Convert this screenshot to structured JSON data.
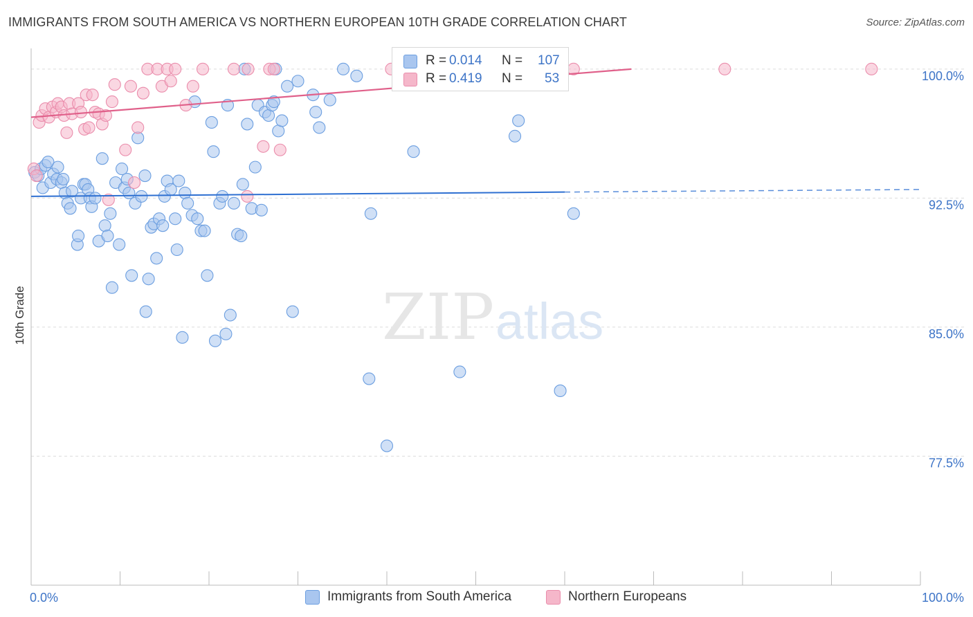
{
  "header": {
    "title": "IMMIGRANTS FROM SOUTH AMERICA VS NORTHERN EUROPEAN 10TH GRADE CORRELATION CHART",
    "source": "Source: ZipAtlas.com"
  },
  "watermark": {
    "zip": "ZIP",
    "atlas": "atlas"
  },
  "colors": {
    "blue_fill": "#a9c6ef",
    "blue_stroke": "#6b9ee0",
    "blue_line": "#2d6fd1",
    "pink_fill": "#f5b7ca",
    "pink_stroke": "#ea8cab",
    "pink_line": "#e0608a",
    "axis_text": "#3d74c7"
  },
  "legend": {
    "rows": [
      {
        "r_label": "R = ",
        "r_value": "0.014",
        "n_label": "N = ",
        "n_value": "107"
      },
      {
        "r_label": "R = ",
        "r_value": "0.419",
        "n_label": "N = ",
        "n_value": "53"
      }
    ]
  },
  "chart_data": {
    "type": "scatter",
    "title": "IMMIGRANTS FROM SOUTH AMERICA VS NORTHERN EUROPEAN 10TH GRADE CORRELATION CHART",
    "xlabel": "",
    "ylabel": "10th Grade",
    "xlim": [
      0,
      100
    ],
    "ylim": [
      70,
      101.2
    ],
    "x_tick_labels": [
      "0.0%",
      "100.0%"
    ],
    "y_ticks": [
      77.5,
      85.0,
      92.5,
      100.0
    ],
    "y_tick_labels": [
      "77.5%",
      "85.0%",
      "92.5%",
      "100.0%"
    ],
    "grid": "horizontal dashed",
    "legend_position": "top-center",
    "series": [
      {
        "name": "Immigrants from South America",
        "r": 0.014,
        "n": 107,
        "trend": {
          "x": [
            0,
            60,
            100
          ],
          "y": [
            92.6,
            92.85,
            93.0
          ],
          "solid_until": 60
        },
        "points": [
          [
            0.4,
            94.0
          ],
          [
            0.8,
            93.8
          ],
          [
            1.1,
            94.2
          ],
          [
            1.3,
            93.1
          ],
          [
            1.6,
            94.4
          ],
          [
            1.9,
            94.6
          ],
          [
            2.2,
            93.4
          ],
          [
            2.5,
            93.9
          ],
          [
            2.9,
            93.6
          ],
          [
            3.0,
            94.3
          ],
          [
            3.4,
            93.4
          ],
          [
            3.6,
            93.6
          ],
          [
            3.8,
            92.8
          ],
          [
            4.1,
            92.2
          ],
          [
            4.4,
            91.9
          ],
          [
            4.6,
            92.9
          ],
          [
            5.2,
            89.8
          ],
          [
            5.3,
            90.3
          ],
          [
            5.6,
            92.5
          ],
          [
            5.9,
            93.3
          ],
          [
            6.1,
            93.3
          ],
          [
            6.4,
            93.0
          ],
          [
            6.6,
            92.5
          ],
          [
            6.8,
            92.0
          ],
          [
            7.2,
            92.5
          ],
          [
            7.6,
            90.0
          ],
          [
            8.0,
            94.8
          ],
          [
            8.3,
            90.9
          ],
          [
            8.6,
            90.3
          ],
          [
            8.9,
            91.6
          ],
          [
            9.1,
            87.3
          ],
          [
            9.5,
            93.4
          ],
          [
            9.9,
            89.8
          ],
          [
            10.2,
            94.2
          ],
          [
            10.5,
            93.1
          ],
          [
            10.8,
            93.6
          ],
          [
            11.0,
            92.8
          ],
          [
            11.3,
            88.0
          ],
          [
            11.7,
            92.2
          ],
          [
            12.0,
            96.0
          ],
          [
            12.4,
            92.6
          ],
          [
            12.8,
            93.8
          ],
          [
            12.9,
            85.9
          ],
          [
            13.2,
            87.8
          ],
          [
            13.5,
            90.8
          ],
          [
            13.8,
            91.0
          ],
          [
            14.1,
            89.0
          ],
          [
            14.4,
            91.3
          ],
          [
            14.8,
            90.9
          ],
          [
            15.0,
            92.6
          ],
          [
            15.3,
            93.5
          ],
          [
            15.7,
            93.0
          ],
          [
            16.2,
            91.3
          ],
          [
            16.4,
            89.5
          ],
          [
            16.6,
            93.5
          ],
          [
            17.0,
            84.4
          ],
          [
            17.3,
            92.8
          ],
          [
            17.6,
            92.2
          ],
          [
            18.1,
            91.5
          ],
          [
            18.4,
            98.1
          ],
          [
            18.7,
            91.3
          ],
          [
            19.1,
            90.6
          ],
          [
            19.5,
            90.6
          ],
          [
            19.8,
            88.0
          ],
          [
            20.3,
            96.9
          ],
          [
            20.5,
            95.2
          ],
          [
            20.7,
            84.2
          ],
          [
            21.2,
            92.2
          ],
          [
            21.5,
            92.6
          ],
          [
            21.9,
            84.6
          ],
          [
            22.1,
            97.9
          ],
          [
            22.4,
            85.7
          ],
          [
            22.8,
            92.2
          ],
          [
            23.2,
            90.4
          ],
          [
            23.6,
            90.3
          ],
          [
            23.8,
            93.3
          ],
          [
            24.0,
            100.0
          ],
          [
            24.3,
            96.8
          ],
          [
            24.8,
            91.9
          ],
          [
            25.2,
            94.3
          ],
          [
            25.5,
            97.9
          ],
          [
            25.9,
            91.8
          ],
          [
            26.3,
            97.5
          ],
          [
            26.7,
            97.3
          ],
          [
            27.1,
            97.9
          ],
          [
            27.3,
            98.1
          ],
          [
            27.5,
            100.0
          ],
          [
            27.8,
            96.4
          ],
          [
            28.2,
            97.0
          ],
          [
            28.8,
            99.0
          ],
          [
            29.4,
            85.9
          ],
          [
            30.0,
            99.3
          ],
          [
            31.7,
            98.5
          ],
          [
            32.0,
            97.5
          ],
          [
            32.4,
            96.6
          ],
          [
            33.6,
            98.2
          ],
          [
            35.1,
            100.0
          ],
          [
            36.6,
            99.6
          ],
          [
            38.0,
            82.0
          ],
          [
            38.2,
            91.6
          ],
          [
            40.0,
            78.1
          ],
          [
            43.0,
            95.2
          ],
          [
            48.2,
            82.4
          ],
          [
            54.4,
            96.1
          ],
          [
            54.8,
            97.0
          ],
          [
            59.5,
            81.3
          ],
          [
            61.0,
            91.6
          ]
        ]
      },
      {
        "name": "Northern Europeans",
        "r": 0.419,
        "n": 53,
        "trend": {
          "x": [
            0,
            67.5
          ],
          "y": [
            97.2,
            100.0
          ]
        },
        "points": [
          [
            0.3,
            94.2
          ],
          [
            0.6,
            93.8
          ],
          [
            0.9,
            96.9
          ],
          [
            1.2,
            97.3
          ],
          [
            1.6,
            97.7
          ],
          [
            2.0,
            97.2
          ],
          [
            2.4,
            97.8
          ],
          [
            2.8,
            97.5
          ],
          [
            3.0,
            98.0
          ],
          [
            3.4,
            97.8
          ],
          [
            3.7,
            97.3
          ],
          [
            4.0,
            96.3
          ],
          [
            4.3,
            98.0
          ],
          [
            4.6,
            97.4
          ],
          [
            5.3,
            98.0
          ],
          [
            5.6,
            97.5
          ],
          [
            6.0,
            96.5
          ],
          [
            6.2,
            98.5
          ],
          [
            6.5,
            96.6
          ],
          [
            6.9,
            98.5
          ],
          [
            7.2,
            97.5
          ],
          [
            7.6,
            97.4
          ],
          [
            8.0,
            96.8
          ],
          [
            8.4,
            97.3
          ],
          [
            8.7,
            92.4
          ],
          [
            9.1,
            98.1
          ],
          [
            9.4,
            99.1
          ],
          [
            10.6,
            95.3
          ],
          [
            11.2,
            99.0
          ],
          [
            11.6,
            93.4
          ],
          [
            12.0,
            96.6
          ],
          [
            12.6,
            98.6
          ],
          [
            13.1,
            100.0
          ],
          [
            14.2,
            100.0
          ],
          [
            14.7,
            99.0
          ],
          [
            15.3,
            100.0
          ],
          [
            15.7,
            99.3
          ],
          [
            16.2,
            100.0
          ],
          [
            17.4,
            97.9
          ],
          [
            18.2,
            99.0
          ],
          [
            19.3,
            100.0
          ],
          [
            22.8,
            100.0
          ],
          [
            24.3,
            92.6
          ],
          [
            24.4,
            100.0
          ],
          [
            26.1,
            95.5
          ],
          [
            26.8,
            100.0
          ],
          [
            27.3,
            100.0
          ],
          [
            28.0,
            95.3
          ],
          [
            40.5,
            100.0
          ],
          [
            50.5,
            100.0
          ],
          [
            61.0,
            100.0
          ],
          [
            78.0,
            100.0
          ],
          [
            94.5,
            100.0
          ]
        ]
      }
    ]
  }
}
